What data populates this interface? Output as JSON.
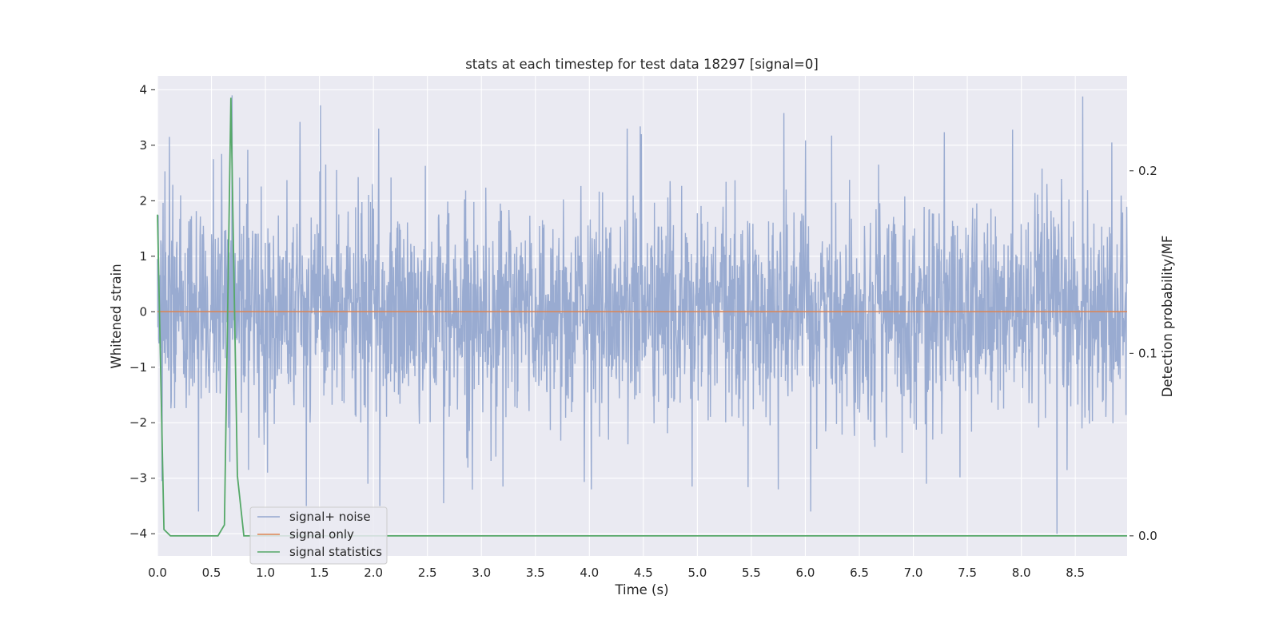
{
  "chart_data": {
    "type": "line",
    "title": "stats at each timestep for test data 18297 [signal=0]",
    "xlabel": "Time (s)",
    "ylabel": "Whitened strain",
    "y2label": "Detection probability/MF",
    "xlim": [
      0.0,
      8.98
    ],
    "ylim": [
      -4.4,
      4.25
    ],
    "y2lim": [
      -0.011,
      0.252
    ],
    "x_ticks": [
      0.0,
      0.5,
      1.0,
      1.5,
      2.0,
      2.5,
      3.0,
      3.5,
      4.0,
      4.5,
      5.0,
      5.5,
      6.0,
      6.5,
      7.0,
      7.5,
      8.0,
      8.5
    ],
    "x_tick_labels": [
      "0.0",
      "0.5",
      "1.0",
      "1.5",
      "2.0",
      "2.5",
      "3.0",
      "3.5",
      "4.0",
      "4.5",
      "5.0",
      "5.5",
      "6.0",
      "6.5",
      "7.0",
      "7.5",
      "8.0",
      "8.5"
    ],
    "y_ticks": [
      -4,
      -3,
      -2,
      -1,
      0,
      1,
      2,
      3,
      4
    ],
    "y_tick_labels": [
      "−4",
      "−3",
      "−2",
      "−1",
      "0",
      "1",
      "2",
      "3",
      "4"
    ],
    "y2_ticks": [
      0.0,
      0.1,
      0.2
    ],
    "y2_tick_labels": [
      "0.0",
      "0.1",
      "0.2"
    ],
    "grid": true,
    "legend_position": "lower-left",
    "background": "#eaeaf2",
    "series": [
      {
        "name": "signal+ noise",
        "color": "#95a8cf",
        "axis": "left",
        "kind": "noise",
        "duration": 8.98,
        "amplitude_std": 0.95,
        "peaks": [
          {
            "x": 0.04,
            "y": -3.05
          },
          {
            "x": 0.11,
            "y": 3.15
          },
          {
            "x": 0.38,
            "y": -3.6
          },
          {
            "x": 0.52,
            "y": 2.75
          },
          {
            "x": 0.69,
            "y": 3.9
          },
          {
            "x": 1.02,
            "y": -2.9
          },
          {
            "x": 1.32,
            "y": 3.42
          },
          {
            "x": 1.38,
            "y": -3.5
          },
          {
            "x": 1.51,
            "y": 3.72
          },
          {
            "x": 1.95,
            "y": -3.1
          },
          {
            "x": 2.05,
            "y": 3.3
          },
          {
            "x": 2.06,
            "y": -3.5
          },
          {
            "x": 2.65,
            "y": -3.45
          },
          {
            "x": 3.2,
            "y": -3.15
          },
          {
            "x": 4.02,
            "y": -3.2
          },
          {
            "x": 4.35,
            "y": 3.3
          },
          {
            "x": 4.48,
            "y": 3.2
          },
          {
            "x": 4.95,
            "y": -3.15
          },
          {
            "x": 5.8,
            "y": 3.58
          },
          {
            "x": 5.75,
            "y": -3.2
          },
          {
            "x": 6.05,
            "y": -3.6
          },
          {
            "x": 6.68,
            "y": 2.65
          },
          {
            "x": 7.12,
            "y": -3.1
          },
          {
            "x": 7.92,
            "y": 3.28
          },
          {
            "x": 8.33,
            "y": -4.0
          },
          {
            "x": 8.57,
            "y": 3.88
          },
          {
            "x": 8.84,
            "y": 3.05
          }
        ]
      },
      {
        "name": "signal only",
        "color": "#dd8452",
        "axis": "left",
        "x": [
          0.0,
          8.98
        ],
        "y": [
          0.0,
          0.0
        ]
      },
      {
        "name": "signal statistics",
        "color": "#55a868",
        "axis": "right",
        "x": [
          0.0,
          0.06,
          0.12,
          0.19,
          0.25,
          0.31,
          0.37,
          0.43,
          0.5,
          0.56,
          0.62,
          0.68,
          0.74,
          0.8,
          0.86,
          1.0,
          2.0,
          3.0,
          4.0,
          5.0,
          6.0,
          7.0,
          8.0,
          8.98
        ],
        "y": [
          0.176,
          0.0035,
          0.0,
          0.0,
          0.0,
          0.0,
          0.0,
          0.0,
          0.0,
          0.0,
          0.006,
          0.24,
          0.033,
          0.0,
          0.0,
          0.0,
          0.0,
          0.0,
          0.0,
          0.0,
          0.0,
          0.0,
          0.0,
          0.0
        ]
      }
    ]
  }
}
